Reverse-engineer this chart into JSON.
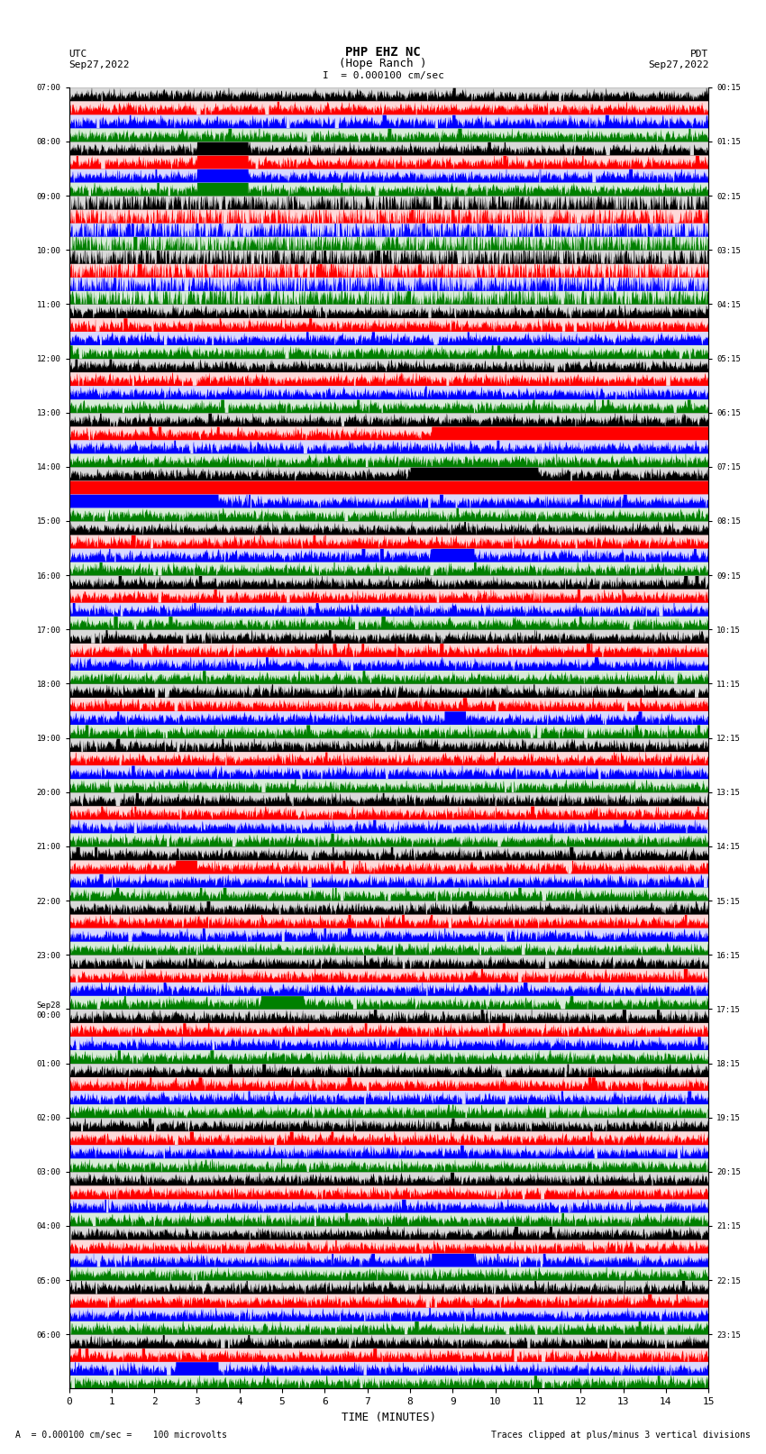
{
  "title_line1": "PHP EHZ NC",
  "title_line2": "(Hope Ranch )",
  "title_line3": "I  = 0.000100 cm/sec",
  "label_left_top": "UTC",
  "label_left_date": "Sep27,2022",
  "label_right_top": "PDT",
  "label_right_date": "Sep27,2022",
  "xlabel": "TIME (MINUTES)",
  "footer_left": "A  = 0.000100 cm/sec =    100 microvolts",
  "footer_right": "Traces clipped at plus/minus 3 vertical divisions",
  "left_times": [
    "07:00",
    "08:00",
    "09:00",
    "10:00",
    "11:00",
    "12:00",
    "13:00",
    "14:00",
    "15:00",
    "16:00",
    "17:00",
    "18:00",
    "19:00",
    "20:00",
    "21:00",
    "22:00",
    "23:00",
    "Sep28\n00:00",
    "01:00",
    "02:00",
    "03:00",
    "04:00",
    "05:00",
    "06:00"
  ],
  "right_times": [
    "00:15",
    "01:15",
    "02:15",
    "03:15",
    "04:15",
    "05:15",
    "06:15",
    "07:15",
    "08:15",
    "09:15",
    "10:15",
    "11:15",
    "12:15",
    "13:15",
    "14:15",
    "15:15",
    "16:15",
    "17:15",
    "18:15",
    "19:15",
    "20:15",
    "21:15",
    "22:15",
    "23:15"
  ],
  "n_rows": 24,
  "trace_colors_per_row": [
    "black",
    "red",
    "blue",
    "green"
  ],
  "bg_color": "white",
  "xlim": [
    0,
    15
  ],
  "xticks": [
    0,
    1,
    2,
    3,
    4,
    5,
    6,
    7,
    8,
    9,
    10,
    11,
    12,
    13,
    14,
    15
  ],
  "seed": 42
}
